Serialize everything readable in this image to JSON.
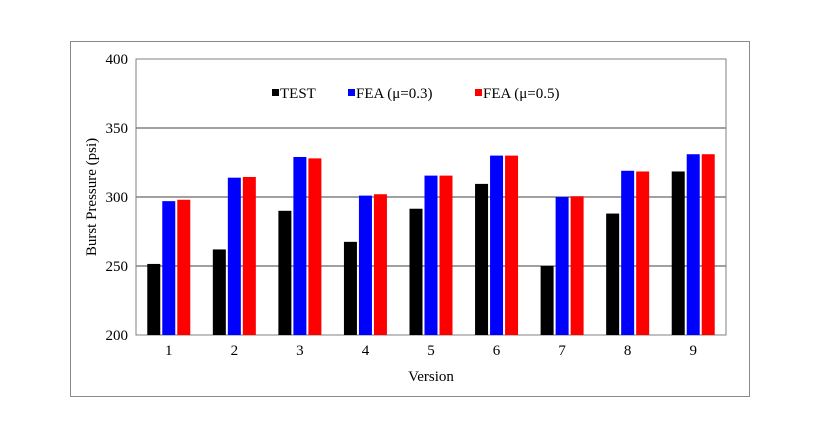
{
  "chart_data": {
    "type": "bar",
    "title": "",
    "xlabel": "Version",
    "ylabel": "Burst Pressure (psi)",
    "ylim": [
      200,
      400
    ],
    "yticks": [
      200,
      250,
      300,
      350,
      400
    ],
    "grid": "horizontal",
    "legend_position": "top-center",
    "categories": [
      "1",
      "2",
      "3",
      "4",
      "5",
      "6",
      "7",
      "8",
      "9"
    ],
    "series": [
      {
        "name": "TEST",
        "color": "#000000",
        "values": [
          251.5,
          262,
          290,
          267.5,
          291.5,
          309.5,
          250,
          288,
          318.5
        ]
      },
      {
        "name": "FEA (μ=0.3)",
        "color": "#0000ff",
        "values": [
          297,
          314,
          329,
          301,
          315.5,
          330,
          300,
          319,
          331
        ]
      },
      {
        "name": "FEA (μ=0.5)",
        "color": "#ff0000",
        "values": [
          298,
          314.5,
          328,
          302,
          315.5,
          330,
          300.5,
          318.5,
          331
        ]
      }
    ]
  }
}
